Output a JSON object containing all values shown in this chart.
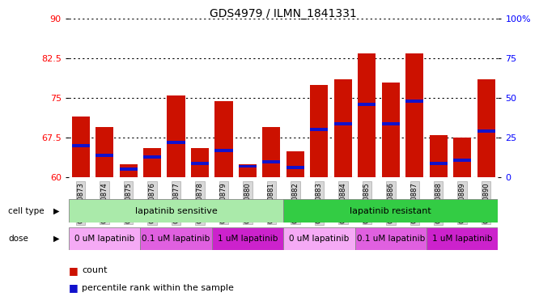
{
  "title": "GDS4979 / ILMN_1841331",
  "samples": [
    "GSM940873",
    "GSM940874",
    "GSM940875",
    "GSM940876",
    "GSM940877",
    "GSM940878",
    "GSM940879",
    "GSM940880",
    "GSM940881",
    "GSM940882",
    "GSM940883",
    "GSM940884",
    "GSM940885",
    "GSM940886",
    "GSM940887",
    "GSM940888",
    "GSM940889",
    "GSM940890"
  ],
  "red_values": [
    71.5,
    69.5,
    62.5,
    65.5,
    75.5,
    65.5,
    74.5,
    62.5,
    69.5,
    65.0,
    77.5,
    78.5,
    83.5,
    78.0,
    83.5,
    68.0,
    67.5,
    78.5
  ],
  "blue_values": [
    20,
    14,
    5,
    13,
    22,
    9,
    17,
    7,
    10,
    6,
    30,
    34,
    46,
    34,
    48,
    9,
    11,
    29
  ],
  "ylim_left": [
    60,
    90
  ],
  "ylim_right": [
    0,
    100
  ],
  "yticks_left": [
    60,
    67.5,
    75,
    82.5,
    90
  ],
  "yticks_right": [
    0,
    25,
    50,
    75,
    100
  ],
  "bar_color_red": "#cc1100",
  "bar_color_blue": "#1111cc",
  "bar_width": 0.75,
  "bg_color": "#ffffff",
  "title_fontsize": 10,
  "tick_fontsize": 8,
  "cell_colors": [
    "#aaeaaa",
    "#33cc44"
  ],
  "dose_colors": [
    "#f5aaf5",
    "#e060e0",
    "#cc22cc",
    "#f5aaf5",
    "#e060e0",
    "#cc22cc"
  ],
  "cell_groups": [
    {
      "label": "lapatinib sensitive",
      "start": 0,
      "end": 9
    },
    {
      "label": "lapatinib resistant",
      "start": 9,
      "end": 18
    }
  ],
  "dose_groups": [
    {
      "label": "0 uM lapatinib",
      "start": 0,
      "end": 3
    },
    {
      "label": "0.1 uM lapatinib",
      "start": 3,
      "end": 6
    },
    {
      "label": "1 uM lapatinib",
      "start": 6,
      "end": 9
    },
    {
      "label": "0 uM lapatinib",
      "start": 9,
      "end": 12
    },
    {
      "label": "0.1 uM lapatinib",
      "start": 12,
      "end": 15
    },
    {
      "label": "1 uM lapatinib",
      "start": 15,
      "end": 18
    }
  ]
}
